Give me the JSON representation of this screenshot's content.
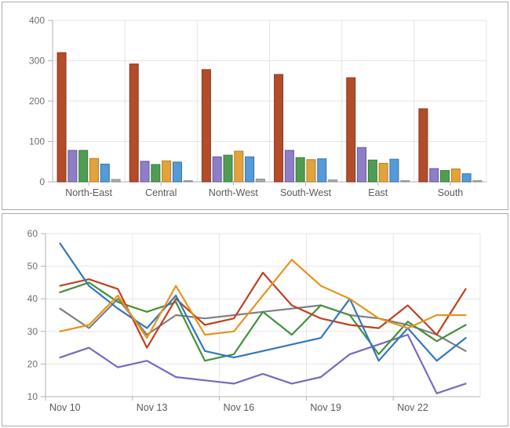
{
  "chart_data": [
    {
      "type": "bar",
      "title": "",
      "categories": [
        "North-East",
        "Central",
        "North-West",
        "South-West",
        "East",
        "South"
      ],
      "series": [
        {
          "name": "red",
          "color": "#b34c2a",
          "stroke": "#8a3a1c",
          "values": [
            320,
            292,
            278,
            266,
            258,
            181
          ]
        },
        {
          "name": "purple",
          "color": "#8d7ec6",
          "stroke": "#67589e",
          "values": [
            78,
            51,
            62,
            78,
            85,
            33
          ]
        },
        {
          "name": "green",
          "color": "#519c53",
          "stroke": "#357d36",
          "values": [
            78,
            43,
            66,
            60,
            54,
            28
          ]
        },
        {
          "name": "orange",
          "color": "#e2a23e",
          "stroke": "#b97d1d",
          "values": [
            58,
            52,
            76,
            55,
            46,
            32
          ]
        },
        {
          "name": "blue",
          "color": "#569bd8",
          "stroke": "#2e72ab",
          "values": [
            44,
            49,
            62,
            57,
            56,
            20
          ]
        },
        {
          "name": "gray",
          "color": "#ababab",
          "stroke": "#8f8f8f",
          "values": [
            6,
            3,
            7,
            5,
            3,
            2
          ]
        }
      ],
      "ylim": [
        0,
        400
      ],
      "yticks": [
        0,
        100,
        200,
        300,
        400
      ],
      "grid": true,
      "legend": "none"
    },
    {
      "type": "line",
      "title": "",
      "x_tick_labels": [
        "Nov 10",
        "Nov 13",
        "Nov 16",
        "Nov 19",
        "Nov 22"
      ],
      "x_tick_days": [
        0,
        3,
        6,
        9,
        12
      ],
      "n_points": 15,
      "ylim": [
        10,
        60
      ],
      "yticks": [
        10,
        20,
        30,
        40,
        50,
        60
      ],
      "grid": true,
      "legend": "none",
      "series": [
        {
          "name": "gray",
          "color": "#7f7f7f",
          "values": [
            37,
            31,
            40,
            29,
            35,
            34,
            35,
            36,
            37,
            38,
            35,
            34,
            32,
            29,
            24
          ]
        },
        {
          "name": "purple",
          "color": "#7a68c0",
          "values": [
            22,
            25,
            19,
            21,
            16,
            15,
            14,
            17,
            14,
            16,
            23,
            26,
            29,
            11,
            14
          ]
        },
        {
          "name": "green",
          "color": "#43913d",
          "values": [
            42,
            45,
            39,
            36,
            39,
            21,
            23,
            36,
            29,
            38,
            35,
            23,
            33,
            27,
            32
          ]
        },
        {
          "name": "red",
          "color": "#c04122",
          "values": [
            44,
            46,
            43,
            25,
            40,
            32,
            34,
            48,
            38,
            34,
            32,
            31,
            38,
            29,
            43
          ]
        },
        {
          "name": "blue",
          "color": "#3377bb",
          "values": [
            57,
            44,
            37,
            31,
            41,
            24,
            22,
            24,
            26,
            28,
            40,
            21,
            31,
            21,
            28
          ]
        },
        {
          "name": "orange",
          "color": "#e6941e",
          "values": [
            30,
            32,
            41,
            28,
            44,
            29,
            30,
            41,
            52,
            44,
            40,
            34,
            31,
            35,
            35
          ]
        }
      ]
    }
  ],
  "style": {
    "grid_color": "#e6e6e6",
    "axis_color": "#b3b3b3",
    "ytick_label_color": "#6e6e6e",
    "xtick_label_color": "#5a5a5a",
    "panel_border_color": "#ababab"
  }
}
